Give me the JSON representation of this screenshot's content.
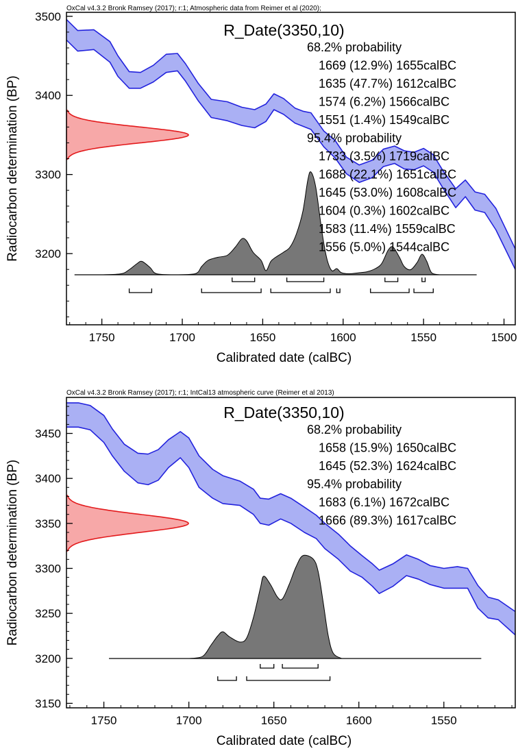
{
  "chart_data": [
    {
      "type": "area",
      "header": "OxCal v4.3.2 Bronk Ramsey (2017); r:1; Atmospheric data from Reimer et al (2020);",
      "title": "R_Date(3350,10)",
      "xlabel": "Calibrated date (calBC)",
      "ylabel": "Radiocarbon determination (BP)",
      "xlim": [
        1772,
        1493
      ],
      "ylim": [
        3110,
        3505
      ],
      "x_ticks": [
        1750,
        1700,
        1650,
        1600,
        1550,
        1500
      ],
      "y_ticks": [
        3200,
        3300,
        3400,
        3500
      ],
      "grid": false,
      "annotation_lines": [
        "68.2% probability",
        "1669 (12.9%) 1655calBC",
        "1635 (47.7%) 1612calBC",
        "1574 (6.2%) 1566calBC",
        "1551 (1.4%) 1549calBC",
        "95.4% probability",
        "1733 (3.5%) 1719calBC",
        "1688 (22.1%) 1651calBC",
        "1645 (53.0%) 1608calBC",
        "1604 (0.3%) 1602calBC",
        "1583 (11.4%) 1559calBC",
        "1556 (5.0%) 1544calBC"
      ],
      "calibration_curve": {
        "color": "#2222dd",
        "fill": "#aab0f4",
        "points": [
          [
            1772,
            3496,
            3470
          ],
          [
            1765,
            3482,
            3456
          ],
          [
            1755,
            3483,
            3458
          ],
          [
            1745,
            3468,
            3442
          ],
          [
            1740,
            3450,
            3424
          ],
          [
            1733,
            3430,
            3409
          ],
          [
            1726,
            3429,
            3409
          ],
          [
            1718,
            3438,
            3417
          ],
          [
            1710,
            3452,
            3429
          ],
          [
            1703,
            3453,
            3431
          ],
          [
            1698,
            3440,
            3418
          ],
          [
            1690,
            3415,
            3393
          ],
          [
            1682,
            3395,
            3372
          ],
          [
            1672,
            3392,
            3368
          ],
          [
            1663,
            3385,
            3362
          ],
          [
            1655,
            3382,
            3359
          ],
          [
            1648,
            3389,
            3367
          ],
          [
            1643,
            3402,
            3382
          ],
          [
            1637,
            3396,
            3376
          ],
          [
            1630,
            3384,
            3365
          ],
          [
            1625,
            3380,
            3361
          ],
          [
            1620,
            3378,
            3357
          ],
          [
            1612,
            3355,
            3335
          ],
          [
            1605,
            3343,
            3321
          ],
          [
            1598,
            3322,
            3301
          ],
          [
            1590,
            3312,
            3290
          ],
          [
            1582,
            3318,
            3296
          ],
          [
            1575,
            3332,
            3310
          ],
          [
            1568,
            3336,
            3314
          ],
          [
            1562,
            3330,
            3307
          ],
          [
            1556,
            3328,
            3306
          ],
          [
            1550,
            3333,
            3311
          ],
          [
            1544,
            3325,
            3303
          ],
          [
            1538,
            3305,
            3283
          ],
          [
            1530,
            3282,
            3258
          ],
          [
            1524,
            3293,
            3272
          ],
          [
            1518,
            3278,
            3255
          ],
          [
            1512,
            3275,
            3252
          ],
          [
            1505,
            3257,
            3230
          ],
          [
            1493,
            3206,
            3180
          ]
        ]
      },
      "radiocarbon_date": {
        "mean": 3350,
        "sd": 10,
        "color": "#e31a1c",
        "fill": "#f7a8a8"
      },
      "probability_distribution": {
        "color": "#000000",
        "fill": "#777777",
        "range": [
          1767,
          1517
        ],
        "points": [
          [
            1750,
            0
          ],
          [
            1738,
            0.01
          ],
          [
            1733,
            0.05
          ],
          [
            1728,
            0.11
          ],
          [
            1725,
            0.13
          ],
          [
            1720,
            0.07
          ],
          [
            1716,
            0.01
          ],
          [
            1705,
            0
          ],
          [
            1692,
            0.01
          ],
          [
            1688,
            0.08
          ],
          [
            1684,
            0.14
          ],
          [
            1678,
            0.17
          ],
          [
            1672,
            0.19
          ],
          [
            1667,
            0.27
          ],
          [
            1663,
            0.35
          ],
          [
            1660,
            0.33
          ],
          [
            1656,
            0.22
          ],
          [
            1651,
            0.14
          ],
          [
            1648,
            0.04
          ],
          [
            1645,
            0.13
          ],
          [
            1642,
            0.17
          ],
          [
            1637,
            0.22
          ],
          [
            1633,
            0.27
          ],
          [
            1629,
            0.4
          ],
          [
            1625,
            0.62
          ],
          [
            1622,
            0.92
          ],
          [
            1620,
            1.0
          ],
          [
            1617,
            0.85
          ],
          [
            1613,
            0.4
          ],
          [
            1610,
            0.15
          ],
          [
            1607,
            0.04
          ],
          [
            1604,
            0.06
          ],
          [
            1601,
            0.02
          ],
          [
            1596,
            0.01
          ],
          [
            1590,
            0.02
          ],
          [
            1585,
            0.03
          ],
          [
            1580,
            0.06
          ],
          [
            1576,
            0.11
          ],
          [
            1572,
            0.24
          ],
          [
            1569,
            0.27
          ],
          [
            1565,
            0.17
          ],
          [
            1562,
            0.08
          ],
          [
            1558,
            0.05
          ],
          [
            1554,
            0.12
          ],
          [
            1551,
            0.2
          ],
          [
            1548,
            0.13
          ],
          [
            1545,
            0.02
          ],
          [
            1540,
            0
          ]
        ]
      },
      "hpd_1sigma": [
        [
          1669,
          1655
        ],
        [
          1635,
          1612
        ],
        [
          1574,
          1566
        ],
        [
          1551,
          1549
        ]
      ],
      "hpd_2sigma": [
        [
          1733,
          1719
        ],
        [
          1688,
          1651
        ],
        [
          1645,
          1608
        ],
        [
          1604,
          1602
        ],
        [
          1583,
          1559
        ],
        [
          1556,
          1544
        ]
      ]
    },
    {
      "type": "area",
      "header": "OxCal v4.3.2 Bronk Ramsey (2017); r:1; IntCal13 atmospheric curve (Reimer et al 2013)",
      "title": "R_Date(3350,10)",
      "xlabel": "Calibrated date (calBC)",
      "ylabel": "Radiocarbon determination (BP)",
      "xlim": [
        1772,
        1508
      ],
      "ylim": [
        3145,
        3490
      ],
      "x_ticks": [
        1750,
        1700,
        1650,
        1600,
        1550
      ],
      "y_ticks": [
        3150,
        3200,
        3250,
        3300,
        3350,
        3400,
        3450
      ],
      "grid": false,
      "annotation_lines": [
        "68.2% probability",
        "1658 (15.9%) 1650calBC",
        "1645 (52.3%) 1624calBC",
        "95.4% probability",
        "1683 (6.1%) 1672calBC",
        "1666 (89.3%) 1617calBC"
      ],
      "calibration_curve": {
        "color": "#2222dd",
        "fill": "#aab0f4",
        "points": [
          [
            1772,
            3484,
            3457
          ],
          [
            1765,
            3484,
            3457
          ],
          [
            1758,
            3481,
            3454
          ],
          [
            1750,
            3470,
            3440
          ],
          [
            1745,
            3455,
            3425
          ],
          [
            1738,
            3438,
            3408
          ],
          [
            1730,
            3428,
            3395
          ],
          [
            1724,
            3427,
            3393
          ],
          [
            1718,
            3432,
            3398
          ],
          [
            1712,
            3443,
            3412
          ],
          [
            1705,
            3452,
            3423
          ],
          [
            1700,
            3445,
            3412
          ],
          [
            1694,
            3425,
            3390
          ],
          [
            1686,
            3410,
            3378
          ],
          [
            1680,
            3403,
            3372
          ],
          [
            1670,
            3397,
            3370
          ],
          [
            1662,
            3388,
            3360
          ],
          [
            1658,
            3378,
            3350
          ],
          [
            1653,
            3377,
            3348
          ],
          [
            1646,
            3383,
            3355
          ],
          [
            1640,
            3378,
            3350
          ],
          [
            1632,
            3368,
            3340
          ],
          [
            1625,
            3359,
            3333
          ],
          [
            1620,
            3350,
            3322
          ],
          [
            1612,
            3338,
            3310
          ],
          [
            1605,
            3325,
            3297
          ],
          [
            1598,
            3314,
            3290
          ],
          [
            1592,
            3305,
            3280
          ],
          [
            1588,
            3298,
            3272
          ],
          [
            1580,
            3305,
            3280
          ],
          [
            1572,
            3315,
            3292
          ],
          [
            1565,
            3310,
            3288
          ],
          [
            1558,
            3303,
            3282
          ],
          [
            1550,
            3300,
            3278
          ],
          [
            1542,
            3302,
            3278
          ],
          [
            1536,
            3300,
            3278
          ],
          [
            1530,
            3281,
            3256
          ],
          [
            1524,
            3268,
            3245
          ],
          [
            1518,
            3265,
            3243
          ],
          [
            1508,
            3252,
            3226
          ]
        ]
      },
      "radiocarbon_date": {
        "mean": 3350,
        "sd": 10,
        "color": "#e31a1c",
        "fill": "#f7a8a8"
      },
      "probability_distribution": {
        "color": "#000000",
        "fill": "#777777",
        "range": [
          1747,
          1528
        ],
        "points": [
          [
            1700,
            0
          ],
          [
            1692,
            0.02
          ],
          [
            1687,
            0.13
          ],
          [
            1683,
            0.22
          ],
          [
            1680,
            0.26
          ],
          [
            1676,
            0.21
          ],
          [
            1670,
            0.16
          ],
          [
            1666,
            0.2
          ],
          [
            1662,
            0.4
          ],
          [
            1658,
            0.68
          ],
          [
            1656,
            0.8
          ],
          [
            1652,
            0.72
          ],
          [
            1648,
            0.6
          ],
          [
            1645,
            0.58
          ],
          [
            1641,
            0.72
          ],
          [
            1637,
            0.89
          ],
          [
            1633,
            1.0
          ],
          [
            1627,
            0.97
          ],
          [
            1624,
            0.85
          ],
          [
            1621,
            0.55
          ],
          [
            1618,
            0.22
          ],
          [
            1615,
            0.05
          ],
          [
            1610,
            0
          ]
        ]
      },
      "hpd_1sigma": [
        [
          1658,
          1650
        ],
        [
          1645,
          1624
        ]
      ],
      "hpd_2sigma": [
        [
          1683,
          1672
        ],
        [
          1666,
          1617
        ]
      ]
    }
  ]
}
